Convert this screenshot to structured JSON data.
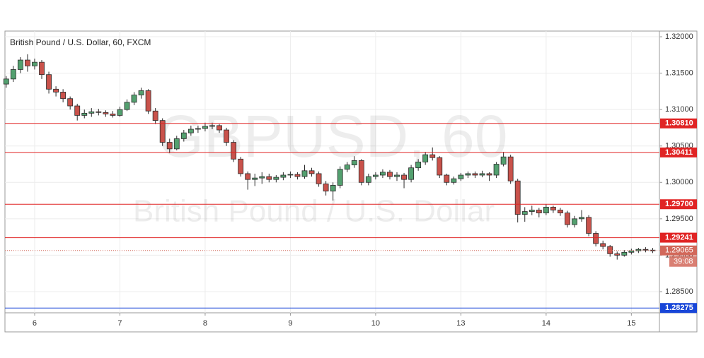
{
  "chart_data": {
    "type": "candlestick",
    "title": "British Pound / U.S. Dollar, 60, FXCM",
    "watermark": [
      "GBPUSD, 60",
      "British Pound / U.S. Dollar"
    ],
    "up_color": "#53a06f",
    "down_color": "#c9524b",
    "grid": true,
    "xlim": [
      -0.36,
      183.9
    ],
    "xticks": [
      {
        "value": 8,
        "label": "6"
      },
      {
        "value": 32,
        "label": "7"
      },
      {
        "value": 56,
        "label": "8"
      },
      {
        "value": 80,
        "label": "9"
      },
      {
        "value": 104,
        "label": "10"
      },
      {
        "value": 128,
        "label": "13"
      },
      {
        "value": 152,
        "label": "14"
      },
      {
        "value": 176,
        "label": "15"
      }
    ],
    "ylim": [
      1.28209,
      1.32078
    ],
    "yticks": [
      {
        "value": 1.285,
        "label": "1.28500"
      },
      {
        "value": 1.29,
        "label": "1.29000"
      },
      {
        "value": 1.295,
        "label": "1.29500"
      },
      {
        "value": 1.3,
        "label": "1.30000"
      },
      {
        "value": 1.305,
        "label": "1.30500"
      },
      {
        "value": 1.31,
        "label": "1.31000"
      },
      {
        "value": 1.315,
        "label": "1.31500"
      },
      {
        "value": 1.32,
        "label": "1.32000"
      }
    ],
    "levels": [
      {
        "value": 1.3081,
        "label": "1.30810",
        "color": "#e02424"
      },
      {
        "value": 1.30411,
        "label": "1.30411",
        "color": "#e02424"
      },
      {
        "value": 1.297,
        "label": "1.29700",
        "color": "#e02424"
      },
      {
        "value": 1.29241,
        "label": "1.29241",
        "color": "#e02424"
      },
      {
        "value": 1.28275,
        "label": "1.28275",
        "color": "#1846d8"
      }
    ],
    "last_price": {
      "value": 1.29065,
      "label": "1.29065",
      "countdown": "39:08",
      "color": "#d2685a"
    },
    "x": [
      0,
      2,
      4,
      6,
      8,
      10,
      12,
      14,
      16,
      18,
      20,
      22,
      24,
      26,
      28,
      30,
      32,
      34,
      36,
      38,
      40,
      42,
      44,
      46,
      48,
      50,
      52,
      54,
      56,
      58,
      60,
      62,
      64,
      66,
      68,
      70,
      72,
      74,
      76,
      78,
      80,
      82,
      84,
      86,
      88,
      90,
      92,
      94,
      96,
      98,
      100,
      102,
      104,
      106,
      108,
      110,
      112,
      114,
      116,
      118,
      120,
      122,
      124,
      126,
      128,
      130,
      132,
      134,
      136,
      138,
      140,
      142,
      144,
      146,
      148,
      150,
      152,
      154,
      156,
      158,
      160,
      162,
      164,
      166,
      168,
      170,
      172,
      174,
      176,
      178,
      180,
      182
    ],
    "candles": [
      [
        1.3135,
        1.3146,
        1.313,
        1.3142
      ],
      [
        1.3142,
        1.316,
        1.3138,
        1.3155
      ],
      [
        1.3155,
        1.3172,
        1.315,
        1.3168
      ],
      [
        1.3168,
        1.3176,
        1.3152,
        1.316
      ],
      [
        1.316,
        1.317,
        1.3155,
        1.3165
      ],
      [
        1.3165,
        1.3168,
        1.3142,
        1.3148
      ],
      [
        1.3148,
        1.3152,
        1.3122,
        1.3128
      ],
      [
        1.3128,
        1.3132,
        1.3118,
        1.3124
      ],
      [
        1.3124,
        1.3128,
        1.311,
        1.3115
      ],
      [
        1.3115,
        1.3118,
        1.31,
        1.3105
      ],
      [
        1.3105,
        1.3108,
        1.3085,
        1.3092
      ],
      [
        1.3092,
        1.31,
        1.3088,
        1.3095
      ],
      [
        1.3095,
        1.3102,
        1.309,
        1.3097
      ],
      [
        1.3097,
        1.3101,
        1.3092,
        1.3096
      ],
      [
        1.3096,
        1.3099,
        1.309,
        1.3094
      ],
      [
        1.3094,
        1.3098,
        1.3089,
        1.3092
      ],
      [
        1.3092,
        1.3104,
        1.309,
        1.31
      ],
      [
        1.31,
        1.3114,
        1.3098,
        1.311
      ],
      [
        1.311,
        1.3124,
        1.3106,
        1.312
      ],
      [
        1.312,
        1.313,
        1.3115,
        1.3126
      ],
      [
        1.3126,
        1.3128,
        1.3094,
        1.3098
      ],
      [
        1.3098,
        1.3102,
        1.308,
        1.3085
      ],
      [
        1.3085,
        1.3088,
        1.305,
        1.3055
      ],
      [
        1.3055,
        1.306,
        1.304,
        1.3046
      ],
      [
        1.3046,
        1.3064,
        1.3044,
        1.306
      ],
      [
        1.306,
        1.3072,
        1.3056,
        1.3068
      ],
      [
        1.3068,
        1.3078,
        1.3064,
        1.3073
      ],
      [
        1.3073,
        1.3078,
        1.3068,
        1.3074
      ],
      [
        1.3074,
        1.3082,
        1.307,
        1.3077
      ],
      [
        1.3077,
        1.3082,
        1.3073,
        1.3078
      ],
      [
        1.3078,
        1.308,
        1.3068,
        1.3072
      ],
      [
        1.3072,
        1.3075,
        1.305,
        1.3055
      ],
      [
        1.3055,
        1.3058,
        1.3028,
        1.3032
      ],
      [
        1.3032,
        1.3035,
        1.3008,
        1.3012
      ],
      [
        1.3012,
        1.3015,
        1.299,
        1.3004
      ],
      [
        1.3004,
        1.3012,
        1.2995,
        1.3006
      ],
      [
        1.3006,
        1.3014,
        1.2998,
        1.3008
      ],
      [
        1.3008,
        1.3012,
        1.3,
        1.3004
      ],
      [
        1.3004,
        1.301,
        1.3,
        1.3007
      ],
      [
        1.3007,
        1.3014,
        1.3003,
        1.301
      ],
      [
        1.301,
        1.3015,
        1.3006,
        1.3011
      ],
      [
        1.3011,
        1.3014,
        1.3004,
        1.3008
      ],
      [
        1.3008,
        1.3024,
        1.3005,
        1.3016
      ],
      [
        1.3016,
        1.302,
        1.3008,
        1.3012
      ],
      [
        1.3012,
        1.3015,
        1.2994,
        1.2998
      ],
      [
        1.2998,
        1.3002,
        1.2982,
        1.2988
      ],
      [
        1.2988,
        1.3,
        1.2975,
        1.2996
      ],
      [
        1.2996,
        1.3022,
        1.2992,
        1.3018
      ],
      [
        1.3018,
        1.3028,
        1.3014,
        1.3024
      ],
      [
        1.3024,
        1.3036,
        1.302,
        1.303
      ],
      [
        1.303,
        1.3032,
        1.2996,
        1.3
      ],
      [
        1.3,
        1.3012,
        1.2996,
        1.3008
      ],
      [
        1.3008,
        1.3014,
        1.3004,
        1.301
      ],
      [
        1.301,
        1.3018,
        1.3006,
        1.3014
      ],
      [
        1.3014,
        1.3017,
        1.3004,
        1.3008
      ],
      [
        1.3008,
        1.3014,
        1.3002,
        1.301
      ],
      [
        1.301,
        1.3013,
        1.2992,
        1.3004
      ],
      [
        1.3004,
        1.3024,
        1.3,
        1.302
      ],
      [
        1.302,
        1.3032,
        1.3016,
        1.3028
      ],
      [
        1.3028,
        1.3042,
        1.3024,
        1.3038
      ],
      [
        1.3038,
        1.3048,
        1.303,
        1.3034
      ],
      [
        1.3034,
        1.3036,
        1.3006,
        1.301
      ],
      [
        1.301,
        1.3012,
        1.2996,
        1.3
      ],
      [
        1.3,
        1.3008,
        1.2997,
        1.3005
      ],
      [
        1.3005,
        1.3013,
        1.3002,
        1.301
      ],
      [
        1.301,
        1.3015,
        1.3006,
        1.3012
      ],
      [
        1.3012,
        1.3015,
        1.3006,
        1.301
      ],
      [
        1.301,
        1.3016,
        1.3007,
        1.3012
      ],
      [
        1.3012,
        1.3014,
        1.3002,
        1.301
      ],
      [
        1.301,
        1.3028,
        1.3006,
        1.3025
      ],
      [
        1.3025,
        1.3042,
        1.3022,
        1.3035
      ],
      [
        1.3035,
        1.3038,
        1.2998,
        1.3002
      ],
      [
        1.3002,
        1.3005,
        1.2945,
        1.2956
      ],
      [
        1.2956,
        1.2966,
        1.2946,
        1.296
      ],
      [
        1.296,
        1.2968,
        1.2955,
        1.2962
      ],
      [
        1.2962,
        1.2965,
        1.2952,
        1.2958
      ],
      [
        1.2958,
        1.297,
        1.2955,
        1.2966
      ],
      [
        1.2966,
        1.2968,
        1.2958,
        1.2962
      ],
      [
        1.2962,
        1.2965,
        1.2954,
        1.2958
      ],
      [
        1.2958,
        1.2961,
        1.2938,
        1.2942
      ],
      [
        1.2942,
        1.2954,
        1.2938,
        1.295
      ],
      [
        1.295,
        1.2962,
        1.2946,
        1.2952
      ],
      [
        1.2952,
        1.2955,
        1.2926,
        1.293
      ],
      [
        1.293,
        1.2933,
        1.2912,
        1.2916
      ],
      [
        1.2916,
        1.292,
        1.2908,
        1.2912
      ],
      [
        1.2912,
        1.2914,
        1.2898,
        1.2902
      ],
      [
        1.2902,
        1.2905,
        1.2894,
        1.29
      ],
      [
        1.29,
        1.2907,
        1.2898,
        1.2904
      ],
      [
        1.2904,
        1.2909,
        1.2901,
        1.2906
      ],
      [
        1.2906,
        1.291,
        1.2903,
        1.2908
      ],
      [
        1.2908,
        1.2911,
        1.2904,
        1.2907
      ],
      [
        1.2907,
        1.291,
        1.2903,
        1.29065
      ]
    ]
  }
}
